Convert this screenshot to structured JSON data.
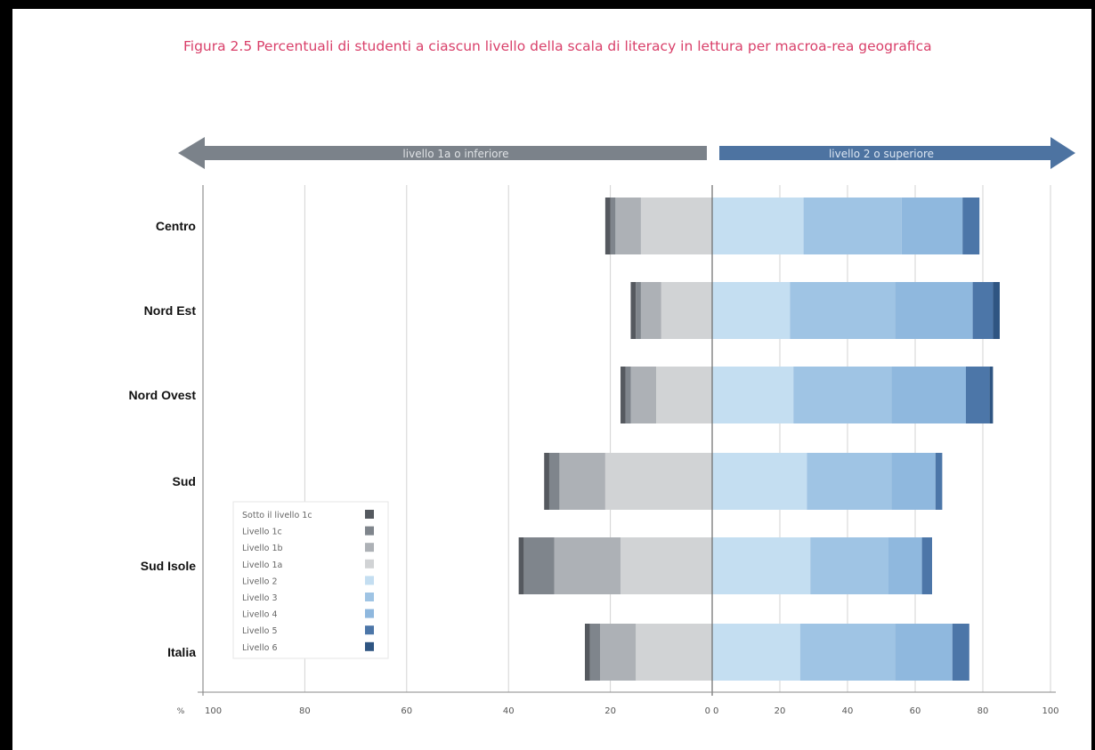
{
  "title": "Figura 2.5 Percentuali di studenti a ciascun livello della scala di literacy in lettura per macroa-rea geografica",
  "chart_data": {
    "type": "bar",
    "stacked": true,
    "diverging": true,
    "orientation": "horizontal",
    "title": "Figura 2.5 Percentuali di studenti a ciascun livello della scala di literacy in lettura per macroa-rea geografica",
    "xlabel": "%",
    "xlim_left": [
      100,
      0
    ],
    "xlim_right": [
      0,
      100
    ],
    "left_ticks": [
      "100",
      "80",
      "60",
      "40",
      "20",
      "0"
    ],
    "right_ticks": [
      "0",
      "20",
      "40",
      "60",
      "80",
      "100"
    ],
    "arrow_left_label": "livello 1a o inferiore",
    "arrow_right_label": "livello 2 o superiore",
    "categories": [
      "Centro",
      "Nord Est",
      "Nord Ovest",
      "Sud",
      "Sud  Isole",
      "Italia"
    ],
    "legend_position": "bottom-left",
    "grid": true,
    "series": [
      {
        "name": "Sotto il livello 1c",
        "side": "left",
        "color": "#55595f",
        "values": [
          1,
          1,
          1,
          1,
          1,
          1
        ]
      },
      {
        "name": "Livello 1c",
        "side": "left",
        "color": "#7f858c",
        "values": [
          1,
          1,
          1,
          2,
          6,
          2
        ]
      },
      {
        "name": "Livello 1b",
        "side": "left",
        "color": "#adb1b6",
        "values": [
          5,
          4,
          5,
          9,
          13,
          7
        ]
      },
      {
        "name": "Livello 1a",
        "side": "left",
        "color": "#d1d3d5",
        "values": [
          14,
          10,
          11,
          21,
          18,
          15
        ]
      },
      {
        "name": "Livello 2",
        "side": "right",
        "color": "#c4def1",
        "values": [
          27,
          23,
          24,
          28,
          29,
          26
        ]
      },
      {
        "name": "Livello 3",
        "side": "right",
        "color": "#9fc4e4",
        "values": [
          29,
          31,
          29,
          25,
          23,
          28
        ]
      },
      {
        "name": "Livello 4",
        "side": "right",
        "color": "#8fb8de",
        "values": [
          18,
          23,
          22,
          13,
          10,
          17
        ]
      },
      {
        "name": "Livello 5",
        "side": "right",
        "color": "#4c76a8",
        "values": [
          5,
          6,
          7,
          2,
          3,
          5
        ]
      },
      {
        "name": "Livello 6",
        "side": "right",
        "color": "#2f5582",
        "values": [
          0,
          2,
          1,
          0,
          0,
          0
        ]
      }
    ]
  }
}
